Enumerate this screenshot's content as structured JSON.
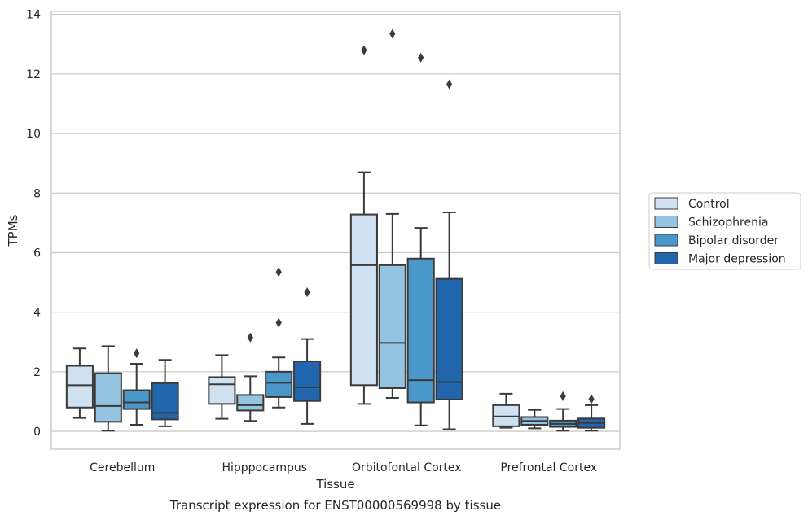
{
  "chart_data": {
    "type": "boxplot",
    "xlabel": "Tissue",
    "ylabel": "TPMs",
    "caption": "Transcript expression for ENST00000569998 by tissue",
    "ylim": [
      -0.6,
      14.1
    ],
    "yticks": [
      0,
      2,
      4,
      6,
      8,
      10,
      12,
      14
    ],
    "grid": "horizontal",
    "legend_position": "right",
    "categories": [
      "Cerebellum",
      "Hipppocampus",
      "Orbitofontal Cortex",
      "Prefrontal Cortex"
    ],
    "series": [
      {
        "name": "Control",
        "color": "#d0e1f2",
        "boxes": [
          {
            "whislo": 0.45,
            "q1": 0.8,
            "med": 1.55,
            "q3": 2.2,
            "whishi": 2.78,
            "fliers": []
          },
          {
            "whislo": 0.42,
            "q1": 0.92,
            "med": 1.58,
            "q3": 1.82,
            "whishi": 2.56,
            "fliers": []
          },
          {
            "whislo": 0.92,
            "q1": 1.55,
            "med": 5.58,
            "q3": 7.28,
            "whishi": 8.7,
            "fliers": [
              12.8
            ]
          },
          {
            "whislo": 0.12,
            "q1": 0.17,
            "med": 0.5,
            "q3": 0.88,
            "whishi": 1.26,
            "fliers": []
          }
        ]
      },
      {
        "name": "Schizophrenia",
        "color": "#94c4df",
        "boxes": [
          {
            "whislo": 0.02,
            "q1": 0.32,
            "med": 0.85,
            "q3": 1.95,
            "whishi": 2.86,
            "fliers": []
          },
          {
            "whislo": 0.35,
            "q1": 0.7,
            "med": 0.88,
            "q3": 1.22,
            "whishi": 1.85,
            "fliers": [
              3.15
            ]
          },
          {
            "whislo": 1.12,
            "q1": 1.45,
            "med": 2.97,
            "q3": 5.58,
            "whishi": 7.3,
            "fliers": [
              13.35
            ]
          },
          {
            "whislo": 0.1,
            "q1": 0.22,
            "med": 0.35,
            "q3": 0.48,
            "whishi": 0.72,
            "fliers": []
          }
        ]
      },
      {
        "name": "Bipolar disorder",
        "color": "#4a98c9",
        "boxes": [
          {
            "whislo": 0.22,
            "q1": 0.75,
            "med": 0.97,
            "q3": 1.38,
            "whishi": 2.27,
            "fliers": [
              2.62
            ]
          },
          {
            "whislo": 0.8,
            "q1": 1.15,
            "med": 1.63,
            "q3": 2.0,
            "whishi": 2.48,
            "fliers": [
              5.35,
              3.65
            ]
          },
          {
            "whislo": 0.2,
            "q1": 0.97,
            "med": 1.72,
            "q3": 5.8,
            "whishi": 6.83,
            "fliers": [
              12.55
            ]
          },
          {
            "whislo": 0.02,
            "q1": 0.15,
            "med": 0.25,
            "q3": 0.36,
            "whishi": 0.75,
            "fliers": [
              1.18
            ]
          }
        ]
      },
      {
        "name": "Major depression",
        "color": "#2166ac",
        "boxes": [
          {
            "whislo": 0.17,
            "q1": 0.4,
            "med": 0.62,
            "q3": 1.62,
            "whishi": 2.4,
            "fliers": []
          },
          {
            "whislo": 0.25,
            "q1": 1.02,
            "med": 1.48,
            "q3": 2.35,
            "whishi": 3.1,
            "fliers": [
              4.67
            ]
          },
          {
            "whislo": 0.07,
            "q1": 1.07,
            "med": 1.65,
            "q3": 5.12,
            "whishi": 7.35,
            "fliers": [
              11.65
            ]
          },
          {
            "whislo": 0.02,
            "q1": 0.12,
            "med": 0.28,
            "q3": 0.43,
            "whishi": 0.88,
            "fliers": [
              1.08
            ]
          }
        ]
      }
    ]
  }
}
